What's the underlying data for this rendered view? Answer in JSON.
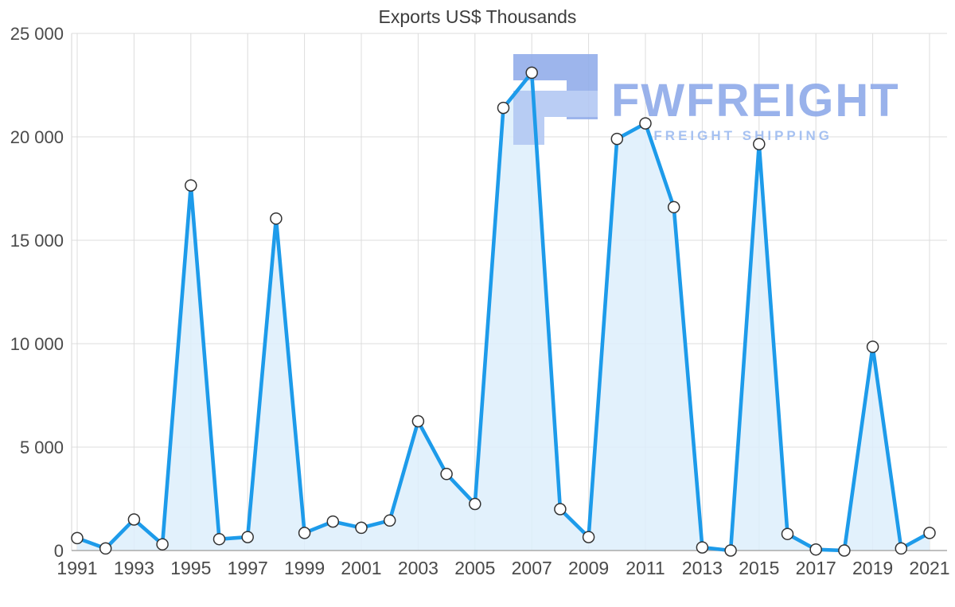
{
  "watermark": {
    "brand": "FWFREIGHT",
    "tagline": "FREIGHT SHIPPING"
  },
  "colors": {
    "line": "#1d9bea",
    "area_fill": "#ddeefb",
    "marker_fill": "#ffffff",
    "marker_stroke": "#333333",
    "grid": "#dcdcdc",
    "axis": "#aaaaaa",
    "tick_label": "#4a4a4a",
    "title_text": "#3c3c3c",
    "watermark_primary": "#8faae9",
    "watermark_secondary": "#9dbbf0",
    "watermark_logo_dark": "#93aeea",
    "watermark_logo_light": "#b3c8f3"
  },
  "chart_data": {
    "type": "area",
    "title": "Exports US$ Thousands",
    "xlabel": "",
    "ylabel": "",
    "series_name": "Exports US$ Thousands",
    "x": [
      1991,
      1992,
      1993,
      1994,
      1995,
      1996,
      1997,
      1998,
      1999,
      2000,
      2001,
      2002,
      2003,
      2004,
      2005,
      2006,
      2007,
      2008,
      2009,
      2010,
      2011,
      2012,
      2013,
      2014,
      2015,
      2016,
      2017,
      2018,
      2019,
      2020,
      2021
    ],
    "values": [
      600,
      100,
      1500,
      300,
      17650,
      550,
      650,
      16050,
      850,
      1400,
      1100,
      1450,
      6250,
      3700,
      2250,
      21400,
      23100,
      2000,
      650,
      19900,
      20650,
      16600,
      150,
      0,
      19650,
      800,
      50,
      0,
      9850,
      100,
      850
    ],
    "ylim": [
      0,
      25000
    ],
    "yticks": [
      {
        "value": 0,
        "label": "0"
      },
      {
        "value": 5000,
        "label": "5 000"
      },
      {
        "value": 10000,
        "label": "10 000"
      },
      {
        "value": 15000,
        "label": "15 000"
      },
      {
        "value": 20000,
        "label": "20 000"
      },
      {
        "value": 25000,
        "label": "25 000"
      }
    ],
    "xtick_labels": [
      "1991",
      "1993",
      "1995",
      "1997",
      "1999",
      "2001",
      "2003",
      "2005",
      "2007",
      "2009",
      "2011",
      "2013",
      "2015",
      "2017",
      "2019",
      "2021"
    ],
    "xtick_step": 2,
    "grid": true,
    "legend": "none",
    "markers": true
  }
}
